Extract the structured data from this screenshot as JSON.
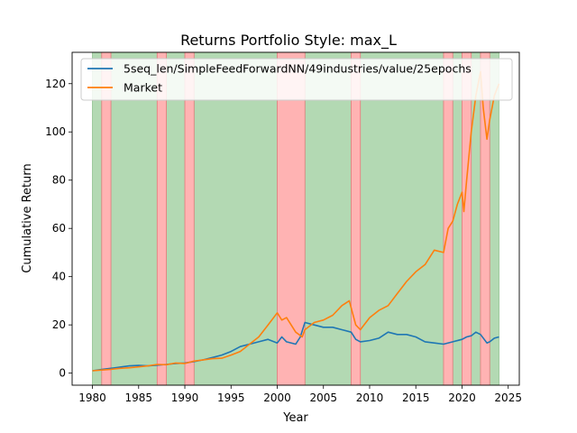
{
  "chart_data": {
    "type": "line",
    "title": "Returns Portfolio Style: max_L",
    "xlabel": "Year",
    "ylabel": "Cumulative Return",
    "xlim": [
      1977.8,
      2026.2
    ],
    "ylim": [
      -5,
      133
    ],
    "xticks": [
      1980,
      1985,
      1990,
      1995,
      2000,
      2005,
      2010,
      2015,
      2020,
      2025
    ],
    "yticks": [
      0,
      20,
      40,
      60,
      80,
      100,
      120
    ],
    "grid": false,
    "legend_position": "top-left",
    "shaded_regions": {
      "green": [
        [
          1980,
          2024
        ]
      ],
      "red": [
        [
          1981,
          1982
        ],
        [
          1987,
          1988
        ],
        [
          1990,
          1991
        ],
        [
          2000,
          2003
        ],
        [
          2008,
          2009
        ],
        [
          2018,
          2019
        ],
        [
          2020,
          2021
        ],
        [
          2022,
          2023
        ]
      ],
      "green_color": "#b3d9b3",
      "red_color": "#ffb3b3"
    },
    "series": [
      {
        "name": "5seq_len/SimpleFeedForwardNN/49industries/value/25epochs",
        "color": "#1f77b4",
        "x": [
          1980,
          1981,
          1982,
          1983,
          1984,
          1985,
          1986,
          1987,
          1988,
          1989,
          1990,
          1991,
          1992,
          1993,
          1994,
          1995,
          1996,
          1997,
          1998,
          1999,
          2000,
          2000.5,
          2001,
          2002,
          2002.5,
          2003,
          2004,
          2005,
          2006,
          2007,
          2008,
          2008.5,
          2009,
          2010,
          2011,
          2012,
          2013,
          2014,
          2015,
          2016,
          2017,
          2018,
          2019,
          2020,
          2020.5,
          2021,
          2021.5,
          2022,
          2022.7,
          2023,
          2023.5,
          2024
        ],
        "values": [
          1,
          1.5,
          2,
          2.5,
          3,
          3.2,
          3,
          3.3,
          3.6,
          4,
          4.2,
          4.8,
          5.5,
          6.5,
          7.5,
          9,
          11,
          12,
          13,
          14,
          12.5,
          15,
          13,
          12,
          15,
          21,
          20,
          19,
          19,
          18,
          17,
          14,
          13,
          13.5,
          14.5,
          17,
          16,
          16,
          15,
          13,
          12.5,
          12,
          13,
          14,
          15,
          15.5,
          17,
          16,
          12.5,
          13,
          14.5,
          15
        ]
      },
      {
        "name": "Market",
        "color": "#ff7f0e",
        "x": [
          1980,
          1981,
          1982,
          1983,
          1984,
          1985,
          1986,
          1987,
          1988,
          1989,
          1990,
          1991,
          1992,
          1993,
          1994,
          1995,
          1996,
          1997,
          1998,
          1999,
          2000,
          2000.5,
          2001,
          2002,
          2002.7,
          2003,
          2004,
          2005,
          2006,
          2007,
          2007.8,
          2008.5,
          2009,
          2010,
          2011,
          2012,
          2013,
          2014,
          2015,
          2016,
          2017,
          2018,
          2018.5,
          2019,
          2019.5,
          2020,
          2020.2,
          2020.5,
          2021,
          2021.5,
          2022,
          2022.3,
          2022.7,
          2023,
          2023.5,
          2024
        ],
        "values": [
          1,
          1.3,
          1.6,
          2,
          2.2,
          2.6,
          3,
          3.6,
          3.5,
          4.2,
          4,
          5,
          5.5,
          6,
          6.2,
          7.5,
          9,
          12,
          15,
          20,
          25,
          22,
          23,
          17,
          15,
          18,
          21,
          22,
          24,
          28,
          30,
          20,
          18,
          23,
          26,
          28,
          33,
          38,
          42,
          45,
          51,
          50,
          60,
          63,
          70,
          75,
          67,
          80,
          100,
          115,
          125,
          110,
          97,
          105,
          115,
          120
        ]
      }
    ]
  }
}
